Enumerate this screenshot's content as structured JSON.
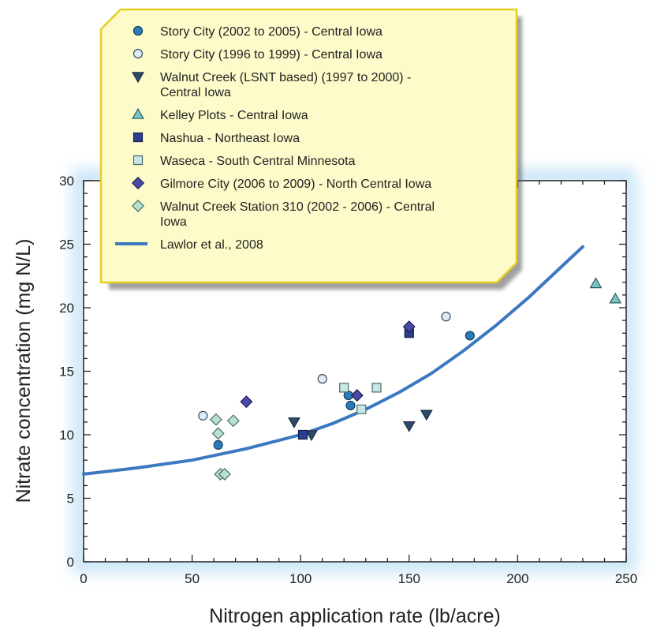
{
  "chart_data": {
    "type": "scatter",
    "xlabel": "Nitrogen application rate (lb/acre)",
    "ylabel": "Nitrate concentration (mg N/L)",
    "xlim": [
      0,
      250
    ],
    "ylim": [
      0,
      30
    ],
    "xticks": [
      "0",
      "50",
      "100",
      "150",
      "200",
      "250"
    ],
    "yticks": [
      "0",
      "5",
      "10",
      "15",
      "20",
      "25",
      "30"
    ],
    "grid": false,
    "legend_position": "top-left",
    "series": [
      {
        "name": "Story City (2002 to 2005) - Central Iowa",
        "name_lines": [
          "Story City (2002 to 2005) - Central Iowa"
        ],
        "marker": "circle",
        "fill": "#2b7bb9",
        "stroke": "#14405f",
        "points": [
          [
            62,
            9.2
          ],
          [
            122,
            13.1
          ],
          [
            123,
            12.3
          ],
          [
            178,
            17.8
          ]
        ]
      },
      {
        "name": "Story City (1996 to 1999) - Central Iowa",
        "name_lines": [
          "Story City (1996 to 1999) - Central Iowa"
        ],
        "marker": "circle",
        "fill": "#dcebf7",
        "stroke": "#3a4a5a",
        "points": [
          [
            55,
            11.5
          ],
          [
            110,
            14.4
          ],
          [
            167,
            19.3
          ]
        ]
      },
      {
        "name": "Walnut Creek (LSNT based) (1997 to 2000) - Central Iowa",
        "name_lines": [
          "Walnut Creek (LSNT based) (1997 to 2000) -",
          "Central Iowa"
        ],
        "marker": "triangle-down",
        "fill": "#2e4a6b",
        "stroke": "#1a2c40",
        "points": [
          [
            97,
            11.0
          ],
          [
            105,
            10.0
          ],
          [
            150,
            10.7
          ],
          [
            158,
            11.6
          ]
        ]
      },
      {
        "name": "Kelley Plots - Central Iowa",
        "name_lines": [
          "Kelley Plots - Central Iowa"
        ],
        "marker": "triangle-up",
        "fill": "#7cc2c4",
        "stroke": "#2f5c5e",
        "points": [
          [
            236,
            21.9
          ],
          [
            245,
            20.7
          ]
        ]
      },
      {
        "name": "Nashua - Northeast Iowa",
        "name_lines": [
          "Nashua - Northeast Iowa"
        ],
        "marker": "square",
        "fill": "#2c3e8f",
        "stroke": "#141e4a",
        "points": [
          [
            101,
            10.0
          ],
          [
            150,
            18.0
          ]
        ]
      },
      {
        "name": "Waseca - South Central Minnesota",
        "name_lines": [
          "Waseca - South Central Minnesota"
        ],
        "marker": "square",
        "fill": "#c9e6e6",
        "stroke": "#4e6a6a",
        "points": [
          [
            120,
            13.7
          ],
          [
            128,
            12.0
          ],
          [
            135,
            13.7
          ]
        ]
      },
      {
        "name": "Gilmore City (2006 to 2009) - North Central Iowa",
        "name_lines": [
          "Gilmore City (2006 to 2009) - North Central Iowa"
        ],
        "marker": "diamond",
        "fill": "#4a4aa6",
        "stroke": "#1c1c55",
        "points": [
          [
            75,
            12.6
          ],
          [
            126,
            13.1
          ],
          [
            150,
            18.5
          ]
        ]
      },
      {
        "name": "Walnut Creek Station 310 (2002 - 2006) - Central Iowa",
        "name_lines": [
          "Walnut Creek Station 310 (2002 - 2006) - Central",
          "Iowa"
        ],
        "marker": "diamond",
        "fill": "#b8e0cf",
        "stroke": "#4b6e60",
        "points": [
          [
            61,
            11.2
          ],
          [
            62,
            10.1
          ],
          [
            69,
            11.1
          ],
          [
            63,
            6.9
          ],
          [
            65,
            6.9
          ]
        ]
      }
    ],
    "curve": {
      "name": "Lawlor et al., 2008",
      "name_lines": [
        "Lawlor et al., 2008"
      ],
      "color": "#3b78c0",
      "x": [
        0,
        25,
        50,
        75,
        100,
        115,
        130,
        145,
        160,
        175,
        190,
        205,
        220,
        230
      ],
      "y": [
        6.9,
        7.4,
        8.0,
        8.9,
        10.0,
        10.9,
        12.0,
        13.3,
        14.8,
        16.6,
        18.6,
        20.8,
        23.2,
        24.8
      ]
    }
  }
}
